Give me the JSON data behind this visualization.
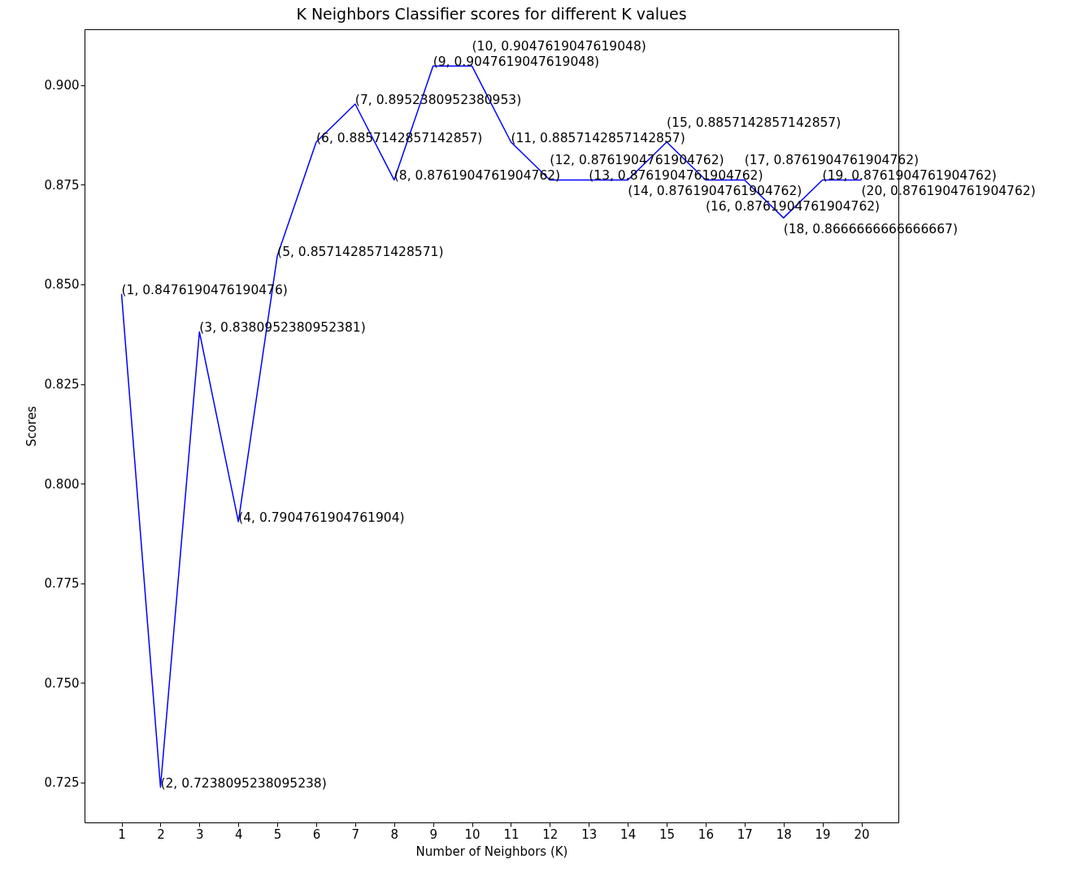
{
  "chart_data": {
    "type": "line",
    "title": "K Neighbors Classifier scores for different K values",
    "xlabel": "Number of Neighbors (K)",
    "ylabel": "Scores",
    "x": [
      1,
      2,
      3,
      4,
      5,
      6,
      7,
      8,
      9,
      10,
      11,
      12,
      13,
      14,
      15,
      16,
      17,
      18,
      19,
      20
    ],
    "series": [
      {
        "color": "#0000ff",
        "values": [
          0.8476190476190476,
          0.7238095238095238,
          0.8380952380952381,
          0.7904761904761904,
          0.8571428571428571,
          0.8857142857142857,
          0.8952380952380953,
          0.8761904761904762,
          0.9047619047619048,
          0.9047619047619048,
          0.8857142857142857,
          0.8761904761904762,
          0.8761904761904762,
          0.8761904761904762,
          0.8857142857142857,
          0.8761904761904762,
          0.8761904761904762,
          0.8666666666666667,
          0.8761904761904762,
          0.8761904761904762
        ],
        "value_labels": [
          "(1, 0.8476190476190476)",
          "(2, 0.7238095238095238)",
          "(3, 0.8380952380952381)",
          "(4, 0.7904761904761904)",
          "(5, 0.8571428571428571)",
          "(6, 0.8857142857142857)",
          "(7, 0.8952380952380953)",
          "(8, 0.8761904761904762)",
          "(9, 0.9047619047619048)",
          "(10, 0.9047619047619048)",
          "(11, 0.8857142857142857)",
          "(12, 0.8761904761904762)",
          "(13, 0.8761904761904762)",
          "(14, 0.8761904761904762)",
          "(15, 0.8857142857142857)",
          "(16, 0.8761904761904762)",
          "(17, 0.8761904761904762)",
          "(18, 0.8666666666666667)",
          "(19, 0.8761904761904762)",
          "(20, 0.8761904761904762)"
        ]
      }
    ],
    "xlim": [
      0.05,
      20.95
    ],
    "ylim": [
      0.715,
      0.914
    ],
    "xticks": [
      1,
      2,
      3,
      4,
      5,
      6,
      7,
      8,
      9,
      10,
      11,
      12,
      13,
      14,
      15,
      16,
      17,
      18,
      19,
      20
    ],
    "yticks": [
      0.725,
      {
        "value": 0.75,
        "label": "0.750"
      },
      0.775,
      {
        "value": 0.8,
        "label": "0.800"
      },
      0.825,
      {
        "value": 0.85,
        "label": "0.850"
      },
      0.875,
      {
        "value": 0.9,
        "label": "0.900"
      }
    ]
  }
}
